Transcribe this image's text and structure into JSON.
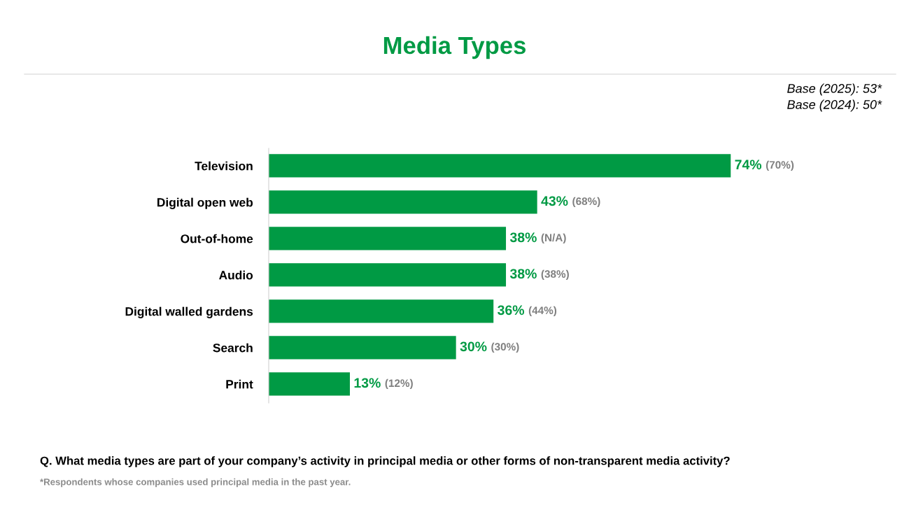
{
  "chart_data": {
    "type": "bar",
    "orientation": "horizontal",
    "title": "Media Types",
    "categories": [
      "Television",
      "Digital open web",
      "Out-of-home",
      "Audio",
      "Digital walled gardens",
      "Search",
      "Print"
    ],
    "values": [
      74,
      43,
      38,
      38,
      36,
      30,
      13
    ],
    "color": "#009a44",
    "value_labels": [
      "74% (70%)",
      "43% (68%)",
      "38% (N/A)",
      "38% (38%)",
      "36% (44%)",
      "30% (30%)",
      "13% (12%)"
    ],
    "tick_labels": "y",
    "grid": false,
    "legend": false,
    "annotations": [
      "Base (2025): 53*",
      "Base (2024): 50*",
      "Q. What media types are part of your company’s activity in principal media or other forms of non-transparent media activity?",
      "*Respondents whose companies used principal media in the past year."
    ]
  }
}
